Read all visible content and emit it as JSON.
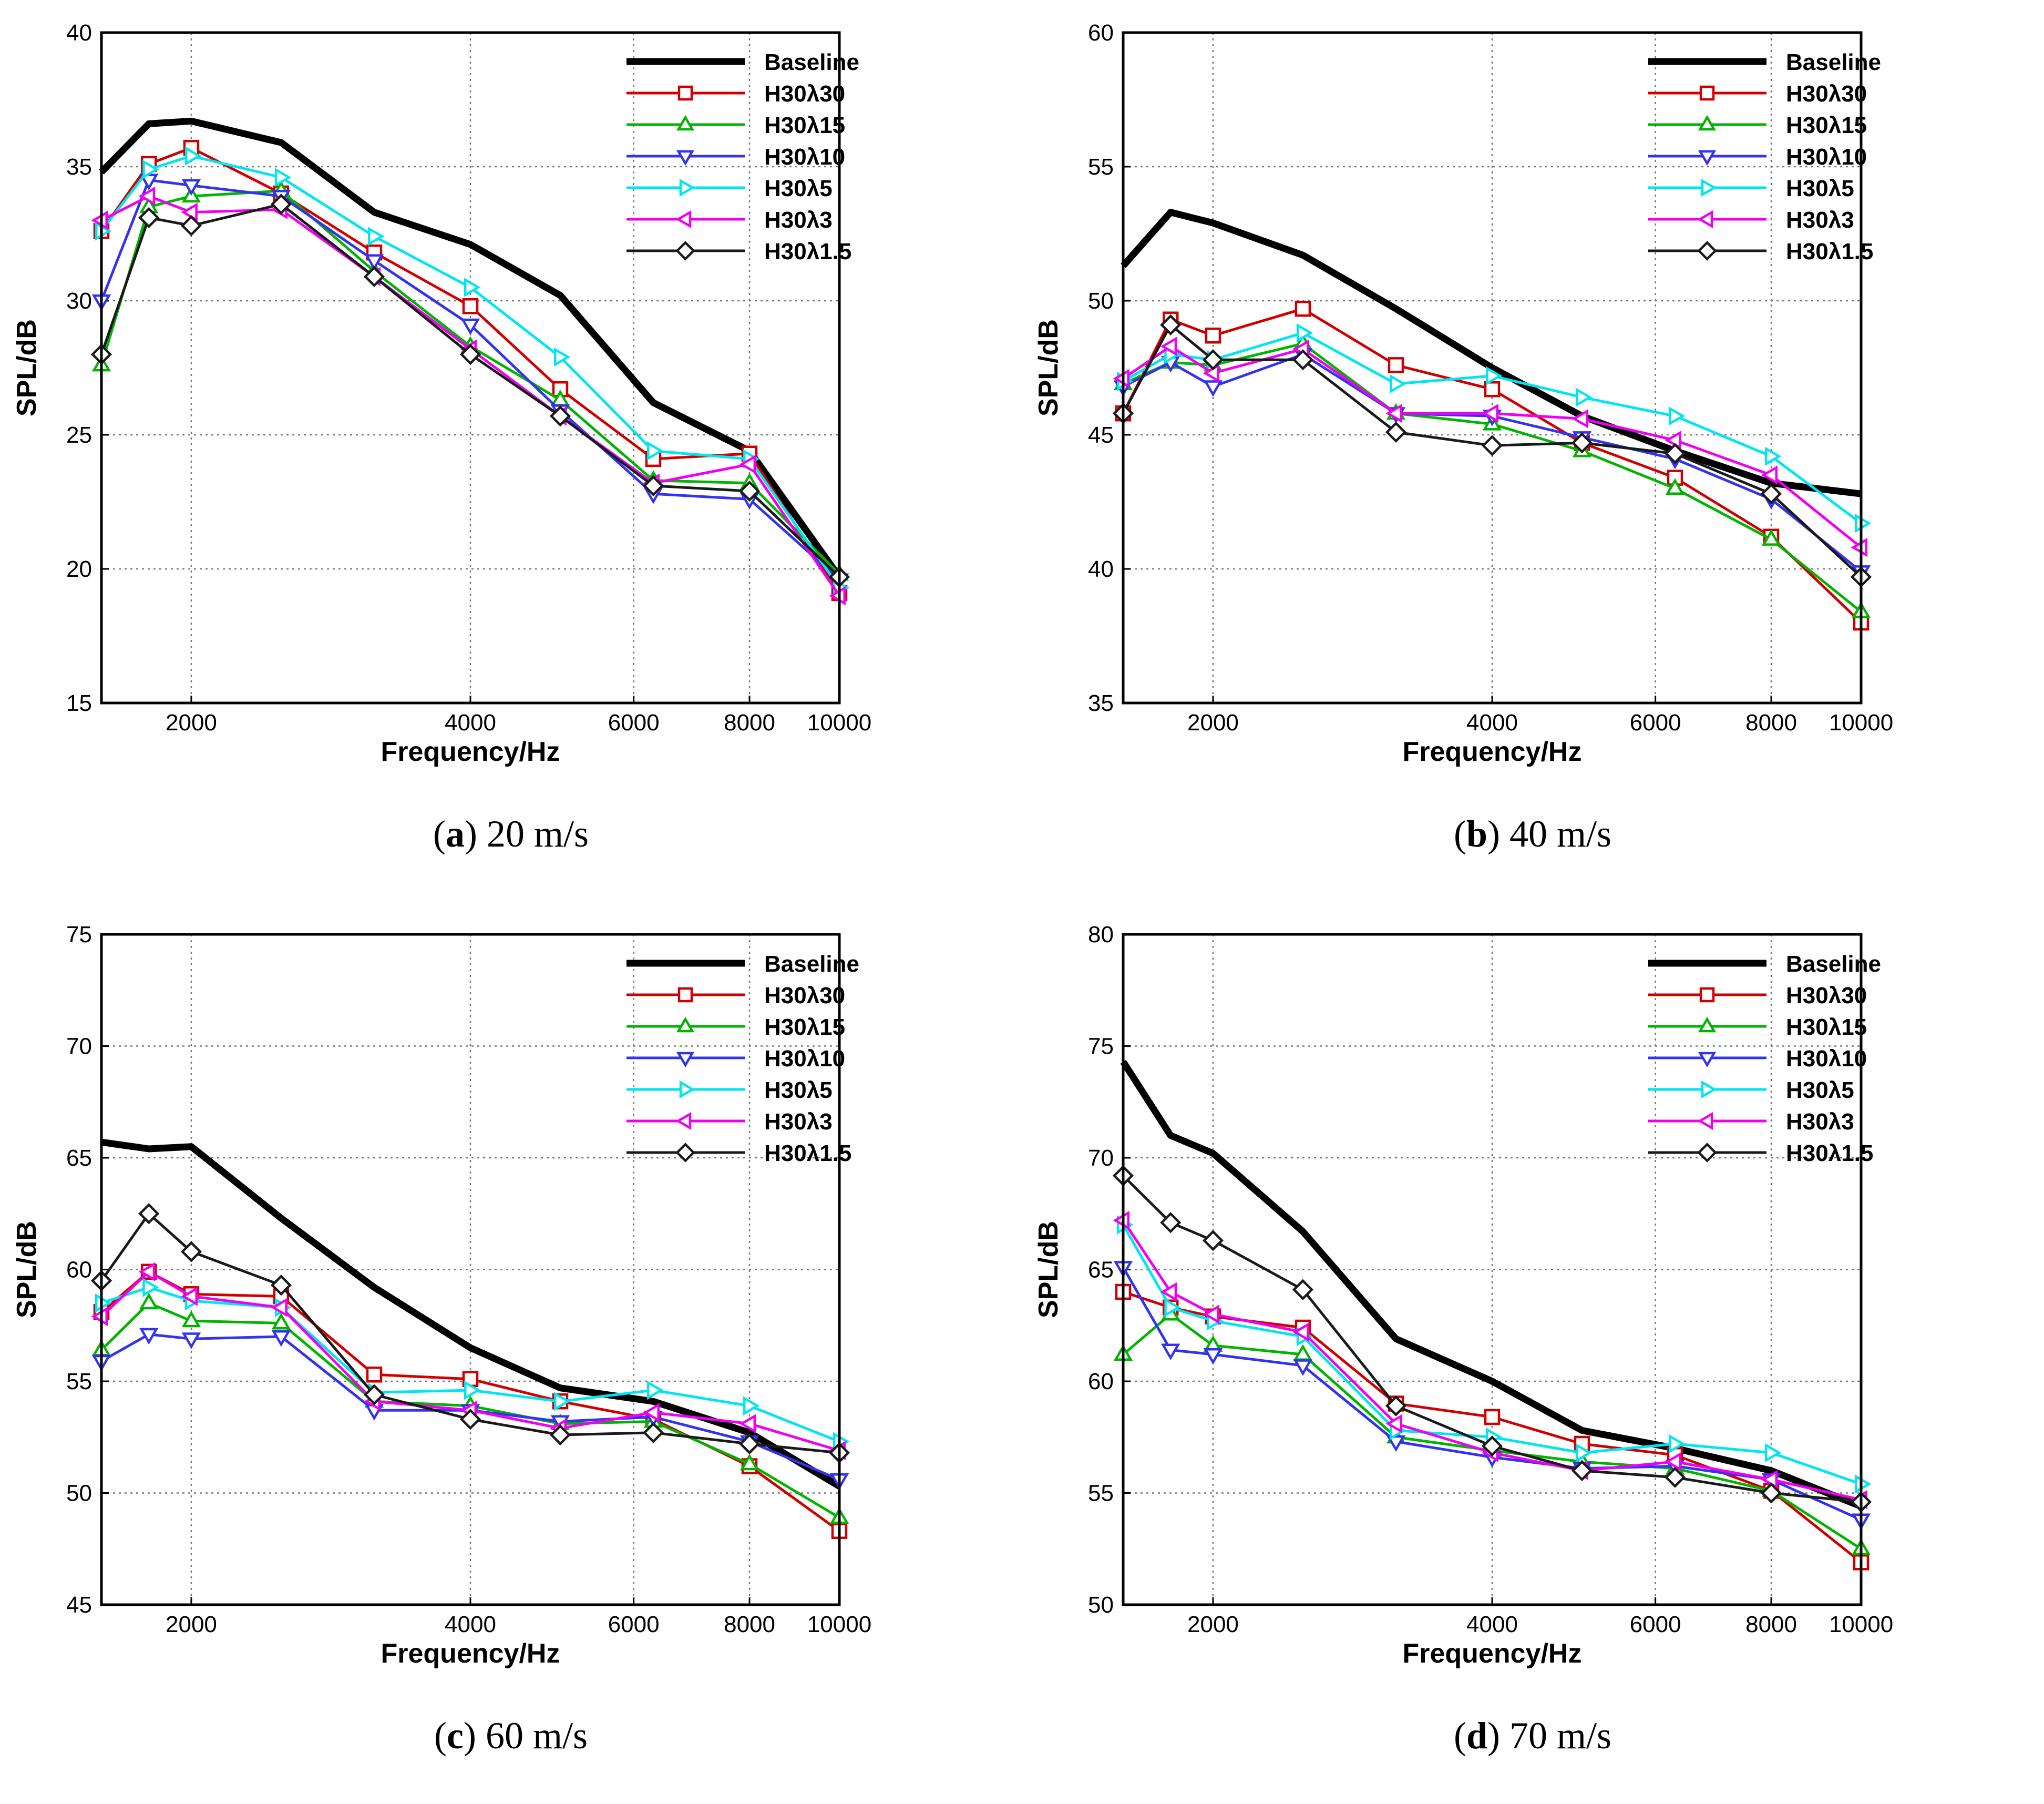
{
  "chart_data": [
    {
      "type": "line",
      "panel_letter": "a",
      "caption_text": "20 m/s",
      "xlabel": "Frequency/Hz",
      "ylabel": "SPL/dB",
      "xscale": "log",
      "xlim": [
        1600,
        10000
      ],
      "ylim": [
        15,
        40
      ],
      "yticks": [
        15,
        20,
        25,
        30,
        35,
        40
      ],
      "xticks": [
        2000,
        4000,
        6000,
        8000,
        10000
      ],
      "x": [
        1600,
        1800,
        2000,
        2500,
        3150,
        4000,
        5000,
        6300,
        8000,
        10000
      ],
      "legend_position": "top-right",
      "series": [
        {
          "name": "Baseline",
          "color": "#000000",
          "marker": "none",
          "values": [
            34.8,
            36.6,
            36.7,
            35.9,
            33.3,
            32.1,
            30.2,
            26.2,
            24.4,
            19.7
          ]
        },
        {
          "name": "H30λ30",
          "color": "#d10000",
          "marker": "square",
          "values": [
            32.6,
            35.1,
            35.7,
            34.0,
            31.8,
            29.8,
            26.7,
            24.1,
            24.3,
            19.1
          ]
        },
        {
          "name": "H30λ15",
          "color": "#00b400",
          "marker": "triangle-up",
          "values": [
            27.6,
            33.5,
            33.9,
            34.1,
            31.1,
            28.3,
            26.3,
            23.3,
            23.2,
            19.8
          ]
        },
        {
          "name": "H30λ10",
          "color": "#3333ee",
          "marker": "triangle-down",
          "values": [
            30.0,
            34.5,
            34.3,
            33.9,
            31.5,
            29.1,
            25.9,
            22.8,
            22.6,
            19.6
          ]
        },
        {
          "name": "H30λ5",
          "color": "#00e6f0",
          "marker": "triangle-right",
          "values": [
            32.6,
            34.9,
            35.4,
            34.6,
            32.4,
            30.5,
            27.9,
            24.4,
            24.1,
            19.3
          ]
        },
        {
          "name": "H30λ3",
          "color": "#f000f0",
          "marker": "triangle-left",
          "values": [
            33.0,
            33.9,
            33.3,
            33.4,
            30.9,
            28.2,
            25.7,
            23.2,
            23.9,
            19.0
          ]
        },
        {
          "name": "H30λ1.5",
          "color": "#1a1a1a",
          "marker": "diamond",
          "values": [
            28.0,
            33.1,
            32.8,
            33.6,
            30.9,
            28.0,
            25.7,
            23.1,
            22.9,
            19.7
          ]
        }
      ]
    },
    {
      "type": "line",
      "panel_letter": "b",
      "caption_text": "40 m/s",
      "xlabel": "Frequency/Hz",
      "ylabel": "SPL/dB",
      "xscale": "log",
      "xlim": [
        1600,
        10000
      ],
      "ylim": [
        35,
        60
      ],
      "yticks": [
        35,
        40,
        45,
        50,
        55,
        60
      ],
      "xticks": [
        2000,
        4000,
        6000,
        8000,
        10000
      ],
      "x": [
        1600,
        1800,
        2000,
        2500,
        3150,
        4000,
        5000,
        6300,
        8000,
        10000
      ],
      "legend_position": "top-right",
      "series": [
        {
          "name": "Baseline",
          "color": "#000000",
          "marker": "none",
          "values": [
            51.3,
            53.3,
            52.9,
            51.7,
            49.7,
            47.5,
            45.7,
            44.4,
            43.2,
            42.8
          ]
        },
        {
          "name": "H30λ30",
          "color": "#d10000",
          "marker": "square",
          "values": [
            45.8,
            49.3,
            48.7,
            49.7,
            47.6,
            46.7,
            44.7,
            43.4,
            41.2,
            38.0
          ]
        },
        {
          "name": "H30λ15",
          "color": "#00b400",
          "marker": "triangle-up",
          "values": [
            46.9,
            47.7,
            47.6,
            48.4,
            45.8,
            45.4,
            44.4,
            43.0,
            41.1,
            38.4
          ]
        },
        {
          "name": "H30λ10",
          "color": "#3333ee",
          "marker": "triangle-down",
          "values": [
            46.8,
            47.7,
            46.8,
            48.0,
            45.8,
            45.7,
            44.9,
            44.1,
            42.6,
            39.9
          ]
        },
        {
          "name": "H30λ5",
          "color": "#00e6f0",
          "marker": "triangle-right",
          "values": [
            47.0,
            48.0,
            47.8,
            48.8,
            46.9,
            47.2,
            46.4,
            45.7,
            44.2,
            41.7
          ]
        },
        {
          "name": "H30λ3",
          "color": "#f000f0",
          "marker": "triangle-left",
          "values": [
            47.1,
            48.3,
            47.3,
            48.2,
            45.8,
            45.8,
            45.6,
            44.8,
            43.5,
            40.8
          ]
        },
        {
          "name": "H30λ1.5",
          "color": "#1a1a1a",
          "marker": "diamond",
          "values": [
            45.8,
            49.1,
            47.8,
            47.8,
            45.1,
            44.6,
            44.7,
            44.3,
            42.8,
            39.7
          ]
        }
      ]
    },
    {
      "type": "line",
      "panel_letter": "c",
      "caption_text": "60 m/s",
      "xlabel": "Frequency/Hz",
      "ylabel": "SPL/dB",
      "xscale": "log",
      "xlim": [
        1600,
        10000
      ],
      "ylim": [
        45,
        75
      ],
      "yticks": [
        45,
        50,
        55,
        60,
        65,
        70,
        75
      ],
      "xticks": [
        2000,
        4000,
        6000,
        8000,
        10000
      ],
      "x": [
        1600,
        1800,
        2000,
        2500,
        3150,
        4000,
        5000,
        6300,
        8000,
        10000
      ],
      "legend_position": "top-right",
      "series": [
        {
          "name": "Baseline",
          "color": "#000000",
          "marker": "none",
          "values": [
            65.7,
            65.4,
            65.5,
            62.3,
            59.2,
            56.5,
            54.7,
            54.1,
            52.7,
            50.3
          ]
        },
        {
          "name": "H30λ30",
          "color": "#d10000",
          "marker": "square",
          "values": [
            58.1,
            59.9,
            58.9,
            58.8,
            55.3,
            55.1,
            54.1,
            53.3,
            51.2,
            48.3
          ]
        },
        {
          "name": "H30λ15",
          "color": "#00b400",
          "marker": "triangle-up",
          "values": [
            56.4,
            58.5,
            57.7,
            57.6,
            54.1,
            53.9,
            53.1,
            53.2,
            51.3,
            48.9
          ]
        },
        {
          "name": "H30λ10",
          "color": "#3333ee",
          "marker": "triangle-down",
          "values": [
            55.9,
            57.1,
            56.9,
            57.0,
            53.7,
            53.7,
            53.2,
            53.4,
            52.3,
            50.6
          ]
        },
        {
          "name": "H30λ5",
          "color": "#00e6f0",
          "marker": "triangle-right",
          "values": [
            58.5,
            59.2,
            58.6,
            58.3,
            54.5,
            54.6,
            54.1,
            54.6,
            53.9,
            52.3
          ]
        },
        {
          "name": "H30λ3",
          "color": "#f000f0",
          "marker": "triangle-left",
          "values": [
            57.9,
            59.9,
            58.8,
            58.3,
            54.1,
            53.7,
            52.9,
            53.6,
            53.1,
            51.9
          ]
        },
        {
          "name": "H30λ1.5",
          "color": "#1a1a1a",
          "marker": "diamond",
          "values": [
            59.5,
            62.5,
            60.8,
            59.3,
            54.4,
            53.3,
            52.6,
            52.7,
            52.2,
            51.8
          ]
        }
      ]
    },
    {
      "type": "line",
      "panel_letter": "d",
      "caption_text": "70 m/s",
      "xlabel": "Frequency/Hz",
      "ylabel": "SPL/dB",
      "xscale": "log",
      "xlim": [
        1600,
        10000
      ],
      "ylim": [
        50,
        80
      ],
      "yticks": [
        50,
        55,
        60,
        65,
        70,
        75,
        80
      ],
      "xticks": [
        2000,
        4000,
        6000,
        8000,
        10000
      ],
      "x": [
        1600,
        1800,
        2000,
        2500,
        3150,
        4000,
        5000,
        6300,
        8000,
        10000
      ],
      "legend_position": "top-right",
      "series": [
        {
          "name": "Baseline",
          "color": "#000000",
          "marker": "none",
          "values": [
            74.3,
            71.0,
            70.2,
            66.7,
            61.9,
            60.0,
            57.8,
            57.0,
            56.0,
            54.4
          ]
        },
        {
          "name": "H30λ30",
          "color": "#d10000",
          "marker": "square",
          "values": [
            64.0,
            63.3,
            62.9,
            62.4,
            59.0,
            58.4,
            57.2,
            56.7,
            55.1,
            51.9
          ]
        },
        {
          "name": "H30λ15",
          "color": "#00b400",
          "marker": "triangle-up",
          "values": [
            61.2,
            63.0,
            61.6,
            61.2,
            57.5,
            56.9,
            56.4,
            56.1,
            55.1,
            52.5
          ]
        },
        {
          "name": "H30λ10",
          "color": "#3333ee",
          "marker": "triangle-down",
          "values": [
            65.1,
            61.4,
            61.2,
            60.7,
            57.3,
            56.6,
            56.1,
            56.2,
            55.6,
            53.8
          ]
        },
        {
          "name": "H30λ5",
          "color": "#00e6f0",
          "marker": "triangle-right",
          "values": [
            67.0,
            63.3,
            62.7,
            62.0,
            57.8,
            57.5,
            56.8,
            57.2,
            56.8,
            55.4
          ]
        },
        {
          "name": "H30λ3",
          "color": "#f000f0",
          "marker": "triangle-left",
          "values": [
            67.2,
            64.0,
            63.0,
            62.2,
            58.1,
            56.8,
            56.0,
            56.4,
            55.6,
            54.7
          ]
        },
        {
          "name": "H30λ1.5",
          "color": "#1a1a1a",
          "marker": "diamond",
          "values": [
            69.2,
            67.1,
            66.3,
            64.1,
            58.9,
            57.1,
            56.0,
            55.7,
            55.0,
            54.6
          ]
        }
      ]
    }
  ]
}
